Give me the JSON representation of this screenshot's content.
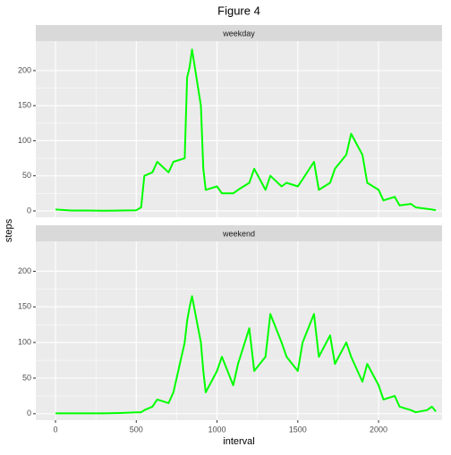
{
  "chart_data": {
    "type": "line",
    "title": "Figure 4",
    "x_label": "interval",
    "y_label": "steps",
    "color": "#00ff00",
    "grid": true,
    "x": [
      0,
      100,
      200,
      300,
      400,
      500,
      530,
      550,
      600,
      630,
      700,
      730,
      800,
      815,
      830,
      845,
      900,
      915,
      930,
      1000,
      1030,
      1100,
      1130,
      1200,
      1230,
      1300,
      1330,
      1400,
      1430,
      1500,
      1530,
      1600,
      1630,
      1700,
      1730,
      1800,
      1830,
      1900,
      1930,
      2000,
      2030,
      2100,
      2130,
      2200,
      2230,
      2300,
      2330,
      2355
    ],
    "facets": [
      {
        "name": "weekday",
        "values": [
          2,
          0.5,
          0.5,
          0.3,
          0.5,
          1,
          5,
          50,
          55,
          70,
          55,
          70,
          75,
          190,
          205,
          230,
          150,
          60,
          30,
          35,
          25,
          25,
          30,
          40,
          60,
          30,
          50,
          35,
          40,
          35,
          45,
          70,
          30,
          40,
          60,
          80,
          110,
          80,
          40,
          30,
          15,
          20,
          8,
          10,
          5,
          3,
          2,
          1
        ]
      },
      {
        "name": "weekend",
        "values": [
          0.5,
          0.5,
          0.5,
          0.5,
          1,
          2,
          2,
          5,
          10,
          20,
          15,
          30,
          100,
          130,
          150,
          165,
          100,
          60,
          30,
          60,
          80,
          40,
          70,
          120,
          60,
          80,
          140,
          100,
          80,
          60,
          100,
          140,
          80,
          110,
          70,
          100,
          80,
          45,
          70,
          40,
          20,
          25,
          10,
          5,
          2,
          5,
          10,
          3
        ]
      }
    ],
    "xlim": [
      -122,
      2393
    ],
    "xticks": [
      0,
      500,
      1000,
      1500,
      2000
    ],
    "ylim": [
      -9,
      242
    ],
    "yticks": [
      0,
      50,
      100,
      150,
      200
    ]
  }
}
